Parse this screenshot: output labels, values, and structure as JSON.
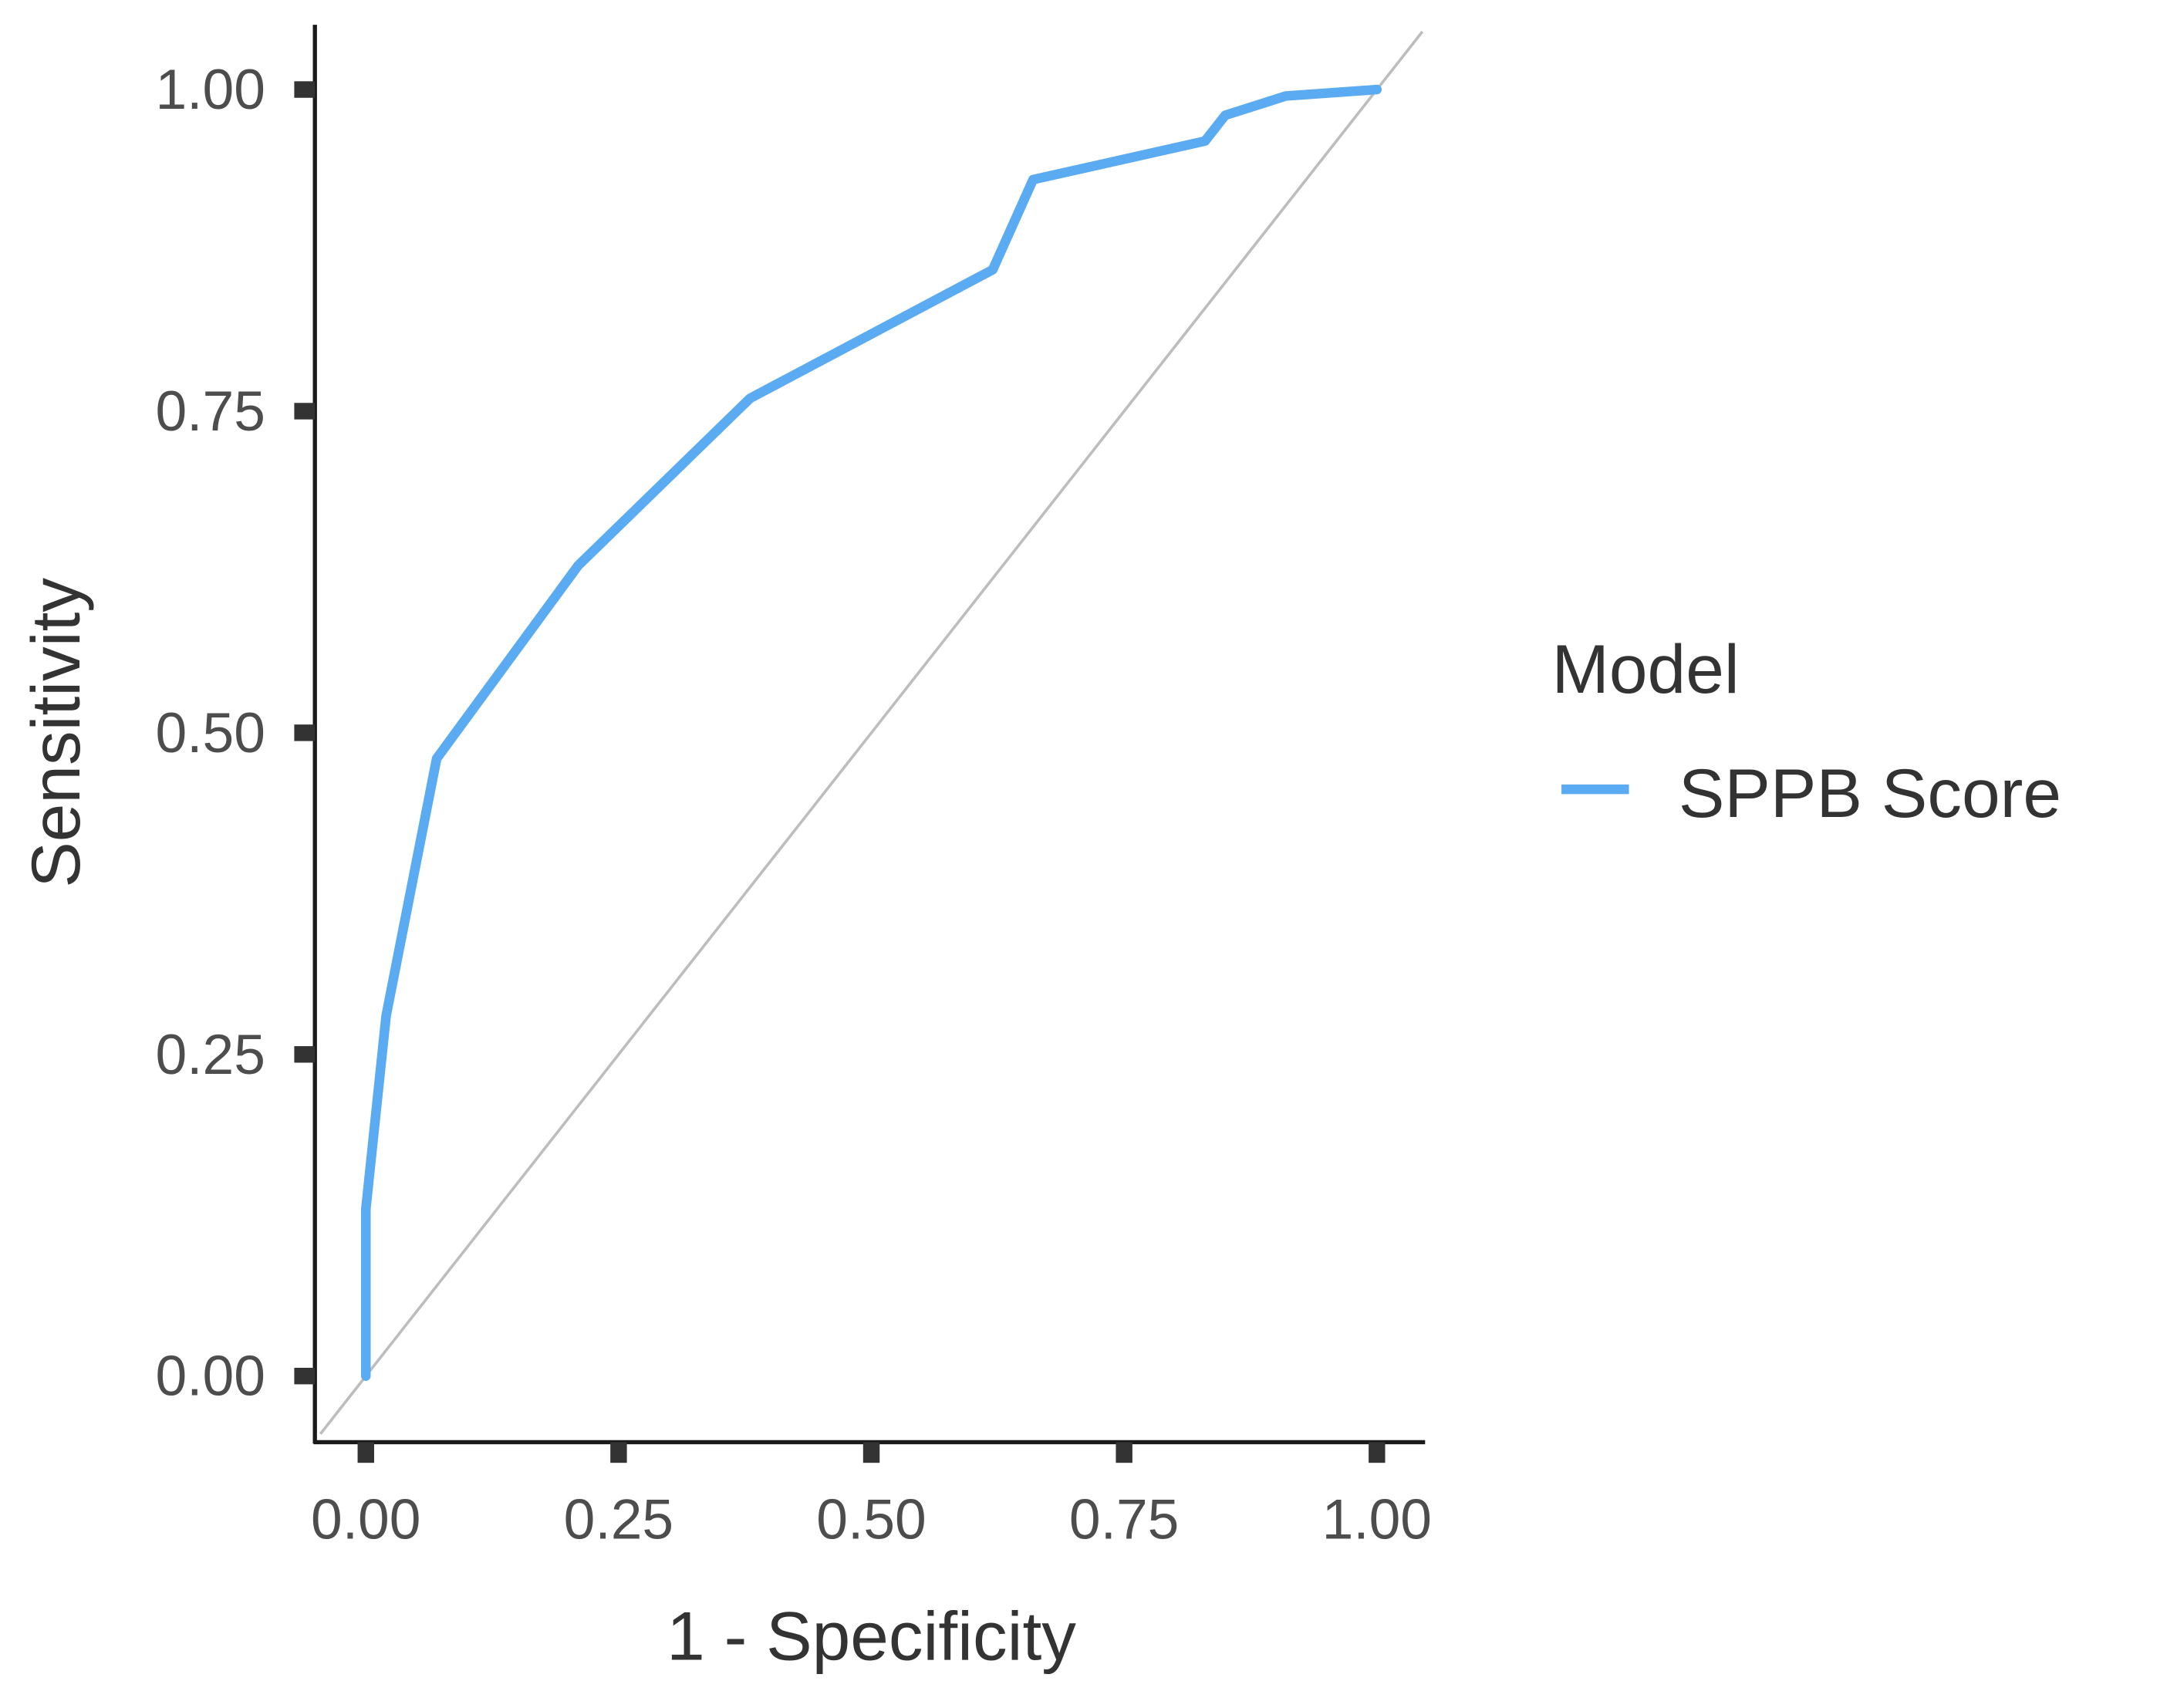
{
  "chart_data": {
    "type": "line",
    "title": "",
    "xlabel": "1 - Specificity",
    "ylabel": "Sensitivity",
    "xlim": [
      0,
      1
    ],
    "ylim": [
      0,
      1
    ],
    "x_ticks": [
      "0.00",
      "0.25",
      "0.50",
      "0.75",
      "1.00"
    ],
    "y_ticks": [
      "0.00",
      "0.25",
      "0.50",
      "0.75",
      "1.00"
    ],
    "grid": false,
    "legend": {
      "title": "Model",
      "position": "right",
      "entries": [
        "SPPB Score"
      ]
    },
    "reference_line": {
      "type": "diagonal",
      "from": [
        0,
        0
      ],
      "to": [
        1,
        1
      ],
      "color": "#bdbdbd"
    },
    "series": [
      {
        "name": "SPPB Score",
        "color": "#5aabf2",
        "x": [
          0.0,
          0.0,
          0.02,
          0.07,
          0.21,
          0.38,
          0.62,
          0.66,
          0.83,
          0.85,
          0.91,
          1.0
        ],
        "y": [
          0.0,
          0.13,
          0.28,
          0.48,
          0.63,
          0.76,
          0.86,
          0.93,
          0.96,
          0.98,
          0.995,
          1.0
        ]
      }
    ]
  }
}
